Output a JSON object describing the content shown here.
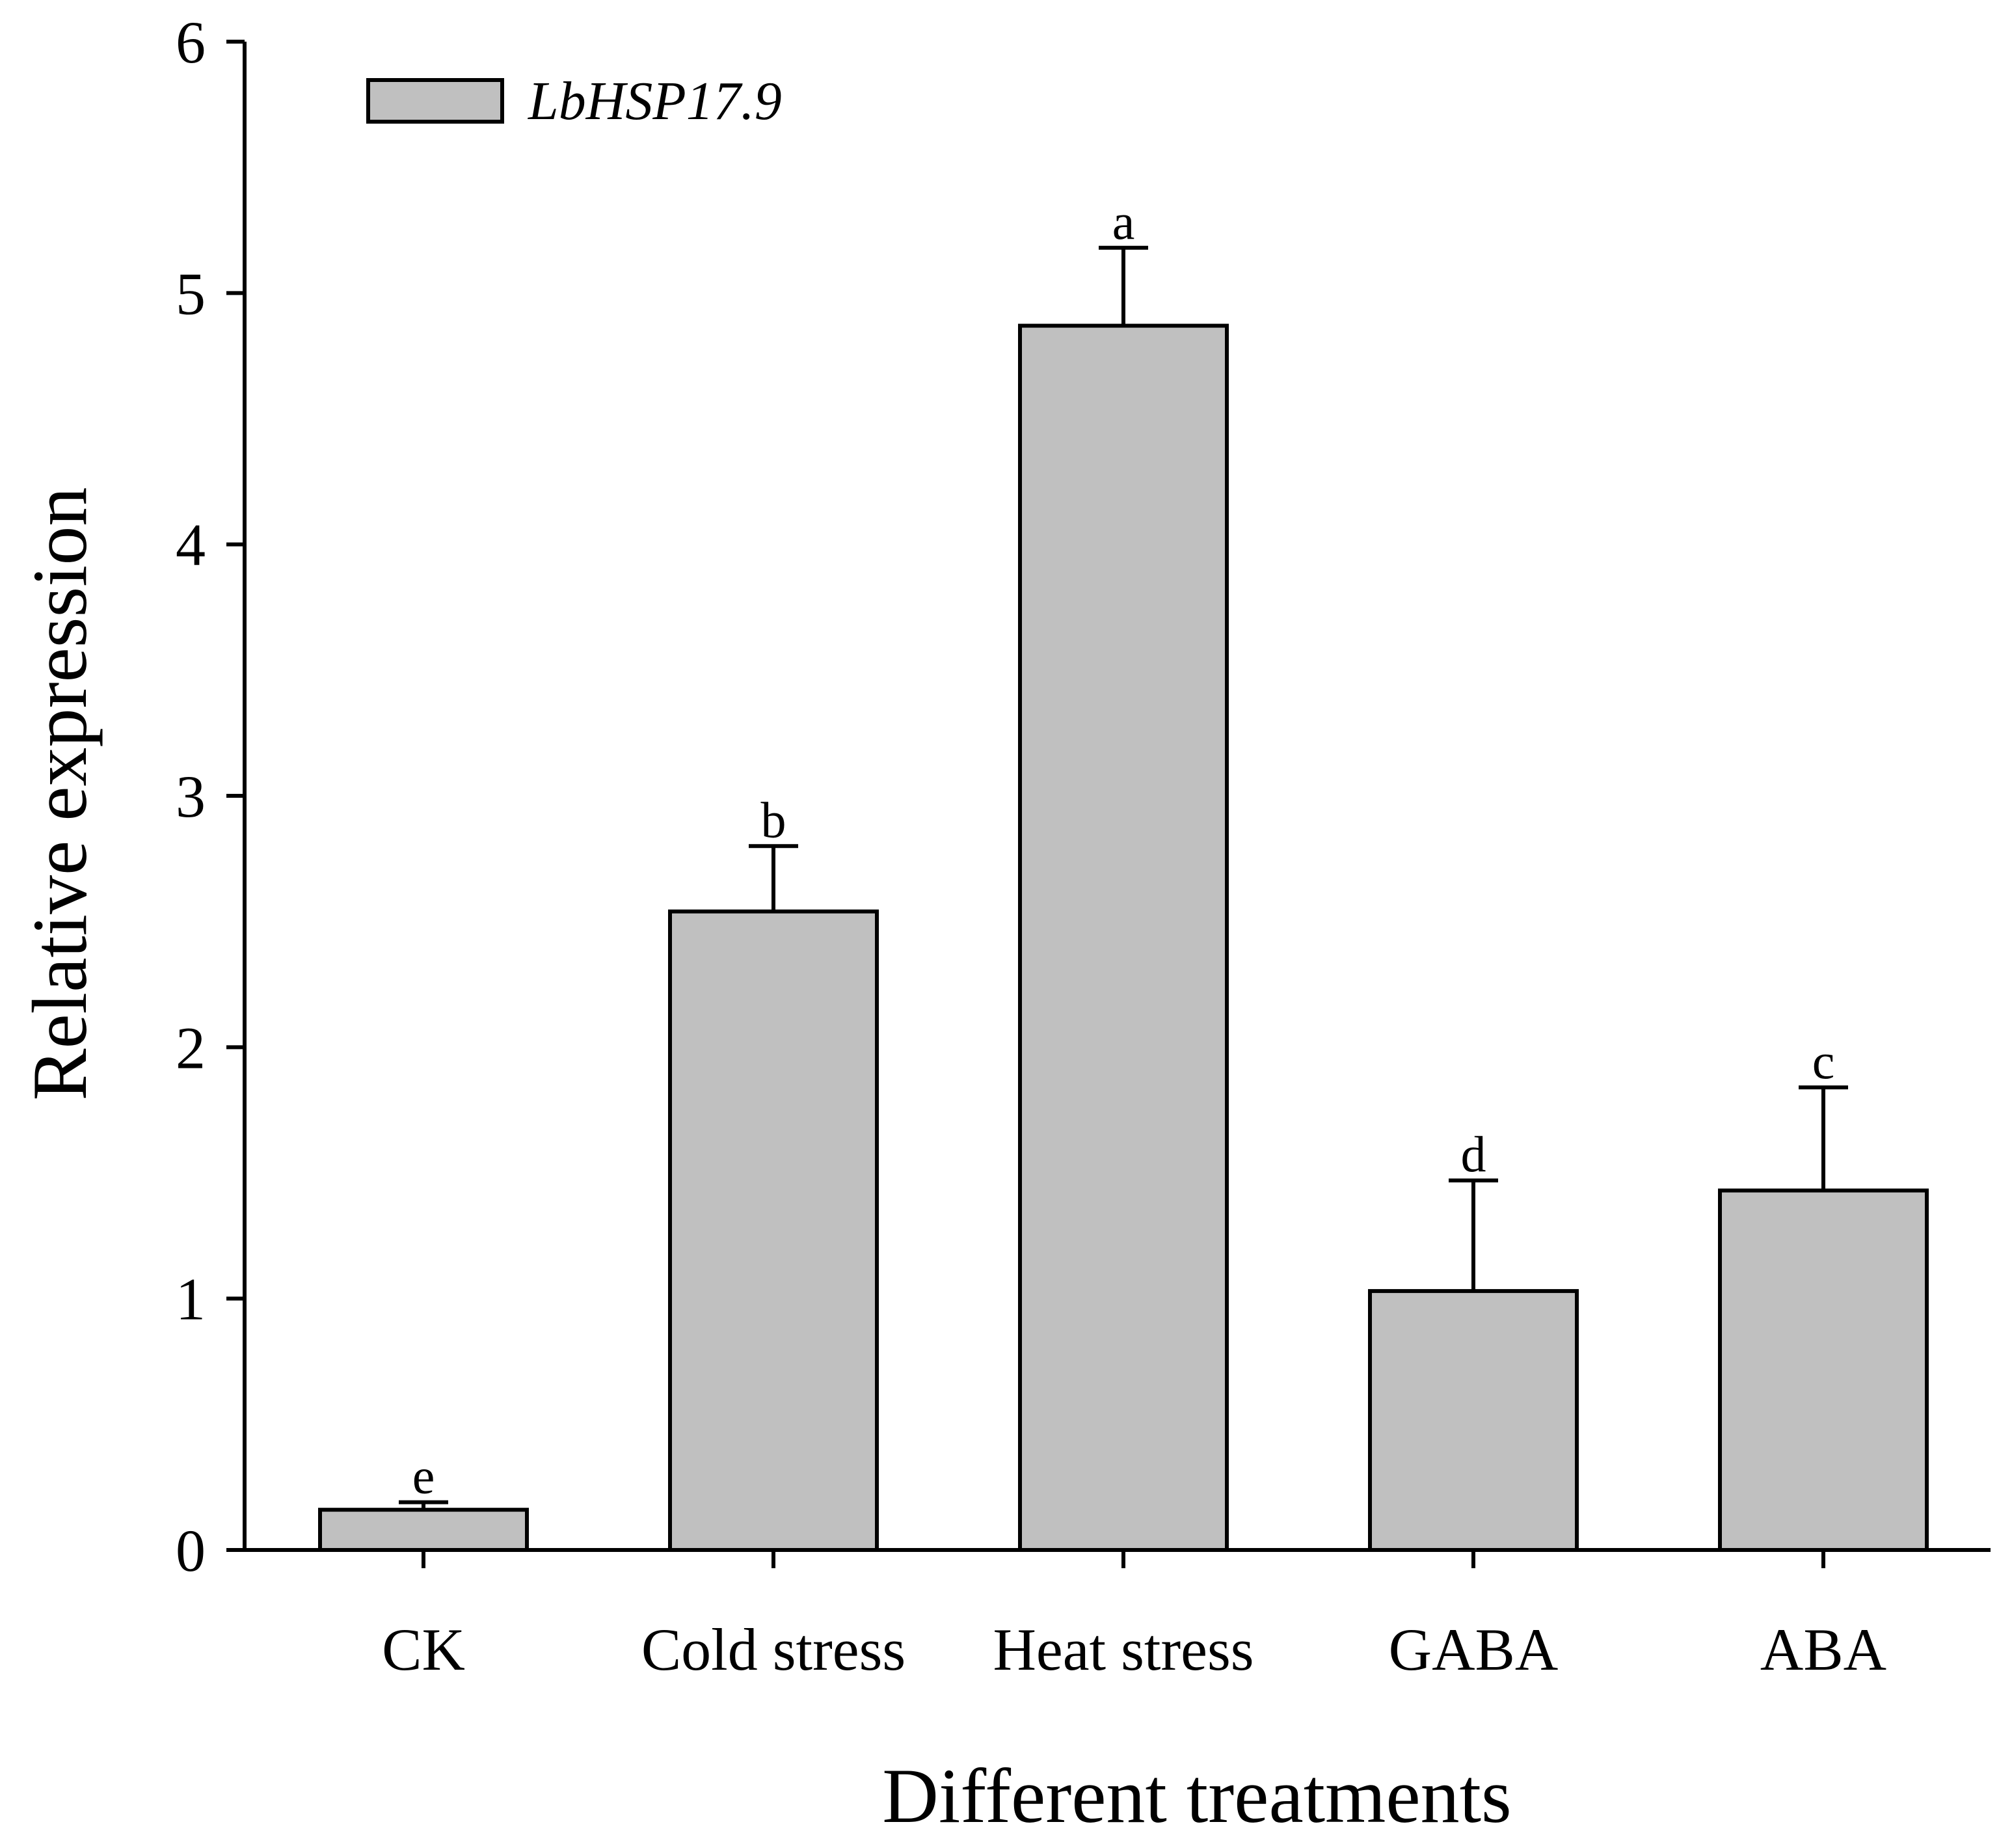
{
  "chart_data": {
    "type": "bar",
    "title": "",
    "xlabel": "Different treatments",
    "ylabel": "Relative expression",
    "ylim": [
      0,
      6
    ],
    "yticks": [
      0,
      1,
      2,
      3,
      4,
      5,
      6
    ],
    "categories": [
      "CK",
      "Cold stress",
      "Heat stress",
      "GABA",
      "ABA"
    ],
    "series": [
      {
        "name": "LbHSP17.9",
        "values": [
          0.16,
          2.54,
          4.87,
          1.03,
          1.43
        ],
        "errors": [
          0.03,
          0.26,
          0.31,
          0.44,
          0.41
        ],
        "significance": [
          "e",
          "b",
          "a",
          "d",
          "c"
        ],
        "color": "#c0c0c0"
      }
    ],
    "legend": {
      "position": "top-left",
      "label": "LbHSP17.9"
    },
    "grid": false
  }
}
